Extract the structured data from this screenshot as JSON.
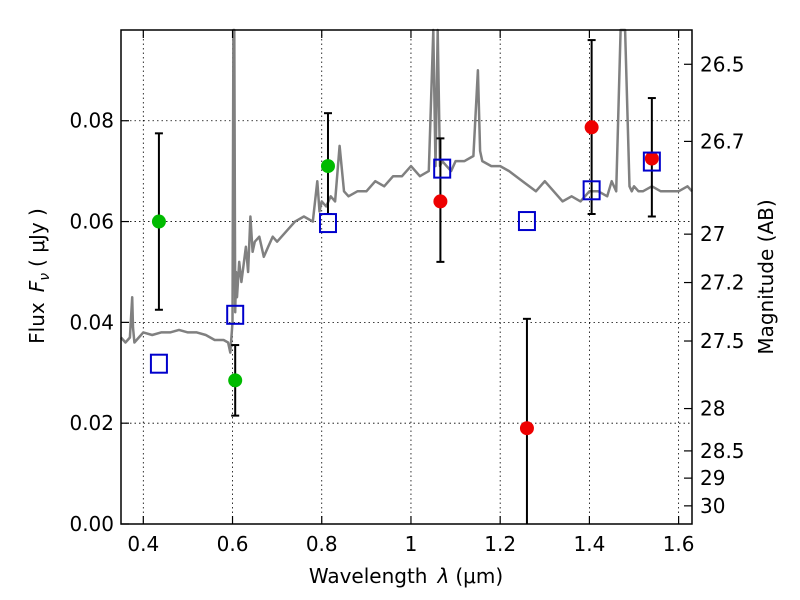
{
  "chart_data": {
    "type": "scatter",
    "xlabel_prefix": "Wavelength",
    "xlabel_symbol": "λ",
    "xlabel_unit": "(μm)",
    "ylabel_prefix": "Flux",
    "ylabel_symbol": "F",
    "ylabel_subscript": "ν",
    "ylabel_unit": "( μJy )",
    "ylabel_right": "Magnitude (AB)",
    "xlim": [
      0.35,
      1.63
    ],
    "ylim": [
      0.0,
      0.098
    ],
    "grid": true,
    "x_ticks": [
      {
        "value": 0.4,
        "label": "0.4"
      },
      {
        "value": 0.6,
        "label": "0.6"
      },
      {
        "value": 0.8,
        "label": "0.8"
      },
      {
        "value": 1.0,
        "label": "1"
      },
      {
        "value": 1.2,
        "label": "1.2"
      },
      {
        "value": 1.4,
        "label": "1.4"
      },
      {
        "value": 1.6,
        "label": "1.6"
      }
    ],
    "y_ticks": [
      {
        "value": 0.0,
        "label": "0.00"
      },
      {
        "value": 0.02,
        "label": "0.02"
      },
      {
        "value": 0.04,
        "label": "0.04"
      },
      {
        "value": 0.06,
        "label": "0.06"
      },
      {
        "value": 0.08,
        "label": "0.08"
      }
    ],
    "mag_ticks": [
      {
        "label": "26.5",
        "flux": 0.0912
      },
      {
        "label": "26.7",
        "flux": 0.0759
      },
      {
        "label": "27",
        "flux": 0.0575
      },
      {
        "label": "27.2",
        "flux": 0.0479
      },
      {
        "label": "27.5",
        "flux": 0.0363
      },
      {
        "label": "28",
        "flux": 0.0229
      },
      {
        "label": "28.5",
        "flux": 0.0145
      },
      {
        "label": "29",
        "flux": 0.0091
      },
      {
        "label": "30",
        "flux": 0.0036
      }
    ],
    "series": [
      {
        "kind": "observed",
        "color": "#00bb00",
        "points": [
          {
            "x": 0.435,
            "y": 0.06,
            "yerr_low": 0.0425,
            "yerr_high": 0.0775
          },
          {
            "x": 0.606,
            "y": 0.0285,
            "yerr_low": 0.0215,
            "yerr_high": 0.0355
          },
          {
            "x": 0.814,
            "y": 0.071,
            "yerr_low": 0.0615,
            "yerr_high": 0.0815
          }
        ]
      },
      {
        "kind": "observed",
        "color": "#ee0000",
        "points": [
          {
            "x": 1.066,
            "y": 0.064,
            "yerr_low": 0.052,
            "yerr_high": 0.0765
          },
          {
            "x": 1.26,
            "y": 0.019,
            "yerr_low": 0.0,
            "yerr_high": 0.0407
          },
          {
            "x": 1.405,
            "y": 0.0787,
            "yerr_low": 0.0615,
            "yerr_high": 0.096
          },
          {
            "x": 1.54,
            "y": 0.0725,
            "yerr_low": 0.061,
            "yerr_high": 0.0845
          }
        ]
      },
      {
        "kind": "model",
        "color": "#0000cc",
        "points": [
          {
            "x": 0.435,
            "y": 0.0318
          },
          {
            "x": 0.606,
            "y": 0.0415
          },
          {
            "x": 0.814,
            "y": 0.0597
          },
          {
            "x": 1.07,
            "y": 0.0705
          },
          {
            "x": 1.26,
            "y": 0.0601
          },
          {
            "x": 1.405,
            "y": 0.0662
          },
          {
            "x": 1.54,
            "y": 0.0719
          }
        ]
      }
    ],
    "sed_line": {
      "color": "#808080",
      "x": [
        0.35,
        0.36,
        0.37,
        0.375,
        0.377,
        0.38,
        0.39,
        0.4,
        0.42,
        0.44,
        0.46,
        0.48,
        0.5,
        0.52,
        0.54,
        0.56,
        0.58,
        0.59,
        0.595,
        0.6,
        0.602,
        0.604,
        0.606,
        0.608,
        0.61,
        0.615,
        0.62,
        0.63,
        0.635,
        0.64,
        0.645,
        0.65,
        0.66,
        0.67,
        0.68,
        0.69,
        0.7,
        0.72,
        0.74,
        0.76,
        0.78,
        0.79,
        0.795,
        0.8,
        0.81,
        0.82,
        0.83,
        0.84,
        0.85,
        0.86,
        0.88,
        0.9,
        0.92,
        0.94,
        0.96,
        0.98,
        1.0,
        1.02,
        1.04,
        1.05,
        1.055,
        1.06,
        1.065,
        1.07,
        1.08,
        1.09,
        1.1,
        1.12,
        1.14,
        1.15,
        1.155,
        1.16,
        1.18,
        1.2,
        1.22,
        1.25,
        1.28,
        1.3,
        1.32,
        1.34,
        1.36,
        1.38,
        1.4,
        1.42,
        1.44,
        1.45,
        1.46,
        1.47,
        1.48,
        1.49,
        1.495,
        1.5,
        1.51,
        1.52,
        1.54,
        1.56,
        1.58,
        1.6,
        1.62,
        1.63
      ],
      "y": [
        0.037,
        0.036,
        0.037,
        0.045,
        0.039,
        0.036,
        0.037,
        0.038,
        0.0375,
        0.038,
        0.038,
        0.0385,
        0.038,
        0.038,
        0.0375,
        0.0365,
        0.0365,
        0.036,
        0.034,
        0.04,
        0.098,
        0.098,
        0.042,
        0.05,
        0.045,
        0.052,
        0.048,
        0.055,
        0.05,
        0.061,
        0.054,
        0.056,
        0.057,
        0.053,
        0.055,
        0.057,
        0.056,
        0.058,
        0.06,
        0.061,
        0.06,
        0.068,
        0.062,
        0.064,
        0.063,
        0.065,
        0.064,
        0.075,
        0.066,
        0.065,
        0.066,
        0.066,
        0.068,
        0.067,
        0.069,
        0.069,
        0.071,
        0.069,
        0.07,
        0.098,
        0.071,
        0.098,
        0.071,
        0.072,
        0.071,
        0.07,
        0.072,
        0.072,
        0.073,
        0.09,
        0.074,
        0.072,
        0.071,
        0.071,
        0.07,
        0.068,
        0.066,
        0.068,
        0.066,
        0.064,
        0.065,
        0.064,
        0.066,
        0.066,
        0.065,
        0.068,
        0.066,
        0.098,
        0.098,
        0.067,
        0.066,
        0.067,
        0.066,
        0.066,
        0.067,
        0.066,
        0.066,
        0.066,
        0.067,
        0.066
      ]
    }
  }
}
